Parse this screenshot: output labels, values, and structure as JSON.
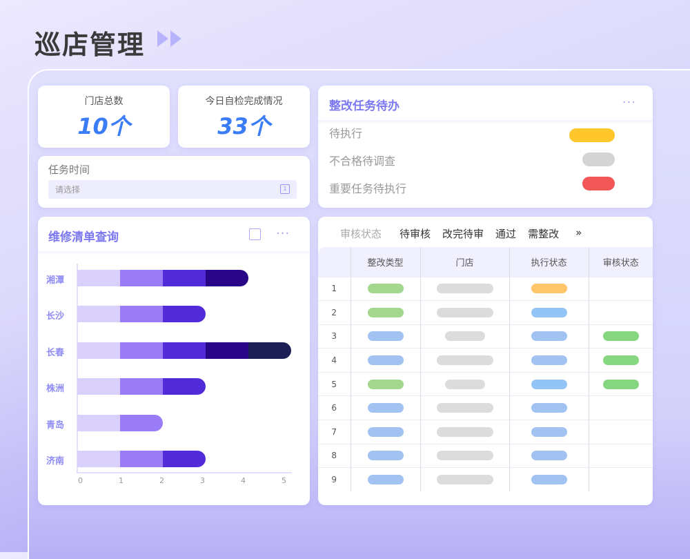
{
  "header": {
    "title": "巡店管理",
    "arrows_icon": "double-play-arrow-icon"
  },
  "stats": [
    {
      "label": "门店总数",
      "value": "10个"
    },
    {
      "label": "今日自检完成情况",
      "value": "33个"
    }
  ],
  "task_time": {
    "label": "任务时间",
    "placeholder": "请选择",
    "icon": "calendar-icon"
  },
  "todo": {
    "title": "整改任务待办",
    "more": "···",
    "items": [
      {
        "label": "待执行",
        "color": "#ffc72c"
      },
      {
        "label": "不合格待调查",
        "color": "#d4d4d4"
      },
      {
        "label": "重要任务待执行",
        "color": "#f25757"
      }
    ]
  },
  "repair": {
    "title": "维修清单查询",
    "share_icon": "share-icon",
    "more": "···"
  },
  "chart_data": {
    "type": "bar",
    "orientation": "horizontal",
    "stacked": true,
    "categories": [
      "湘潭",
      "长沙",
      "长春",
      "株洲",
      "青岛",
      "济南"
    ],
    "values": [
      4,
      3,
      5,
      3,
      2,
      3
    ],
    "segment_unit": 1,
    "segment_colors": [
      "#d9d0fb",
      "#997cf6",
      "#522bd9",
      "#290687",
      "#1c2055"
    ],
    "xticks": [
      "0",
      "1",
      "2",
      "3",
      "4",
      "5"
    ],
    "xlim": [
      0,
      5
    ],
    "grid": false
  },
  "review": {
    "filter_label": "审核状态",
    "filters": [
      "待审核",
      "改完待审",
      "通过",
      "需整改"
    ],
    "more": "»",
    "columns": [
      "整改类型",
      "门店",
      "执行状态",
      "审核状态"
    ],
    "rows": [
      {
        "no": "1",
        "type": "#a3d78e",
        "store": "long",
        "exec": "#ffc56b",
        "audit": ""
      },
      {
        "no": "2",
        "type": "#a3d78e",
        "store": "long",
        "exec": "#93c4f6",
        "audit": ""
      },
      {
        "no": "3",
        "type": "#a2c3f2",
        "store": "short",
        "exec": "#a2c3f2",
        "audit": "#86d57f"
      },
      {
        "no": "4",
        "type": "#a2c3f2",
        "store": "long",
        "exec": "#a2c3f2",
        "audit": "#86d57f"
      },
      {
        "no": "5",
        "type": "#a3d78e",
        "store": "short",
        "exec": "#93c4f6",
        "audit": "#86d57f"
      },
      {
        "no": "6",
        "type": "#a2c3f2",
        "store": "long",
        "exec": "#a2c3f2",
        "audit": ""
      },
      {
        "no": "7",
        "type": "#a2c3f2",
        "store": "long",
        "exec": "#a2c3f2",
        "audit": ""
      },
      {
        "no": "8",
        "type": "#a2c3f2",
        "store": "long",
        "exec": "#a2c3f2",
        "audit": ""
      },
      {
        "no": "9",
        "type": "#a2c3f2",
        "store": "long",
        "exec": "#a2c3f2",
        "audit": ""
      }
    ]
  }
}
